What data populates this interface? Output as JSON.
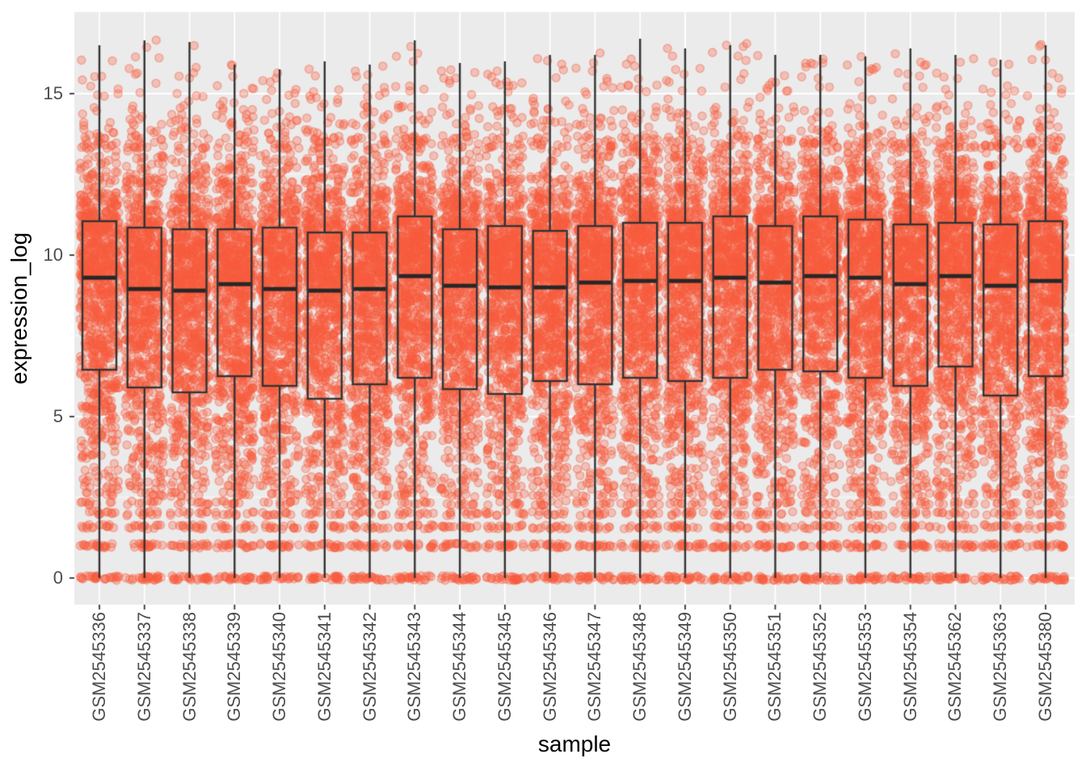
{
  "chart_data": {
    "type": "boxplot-jitter",
    "title": "",
    "xlabel": "sample",
    "ylabel": "expression_log",
    "ylim": [
      -0.82,
      17.5
    ],
    "yticks": [
      0,
      5,
      10,
      15
    ],
    "yticks_minor": [
      2.5,
      7.5,
      12.5
    ],
    "grid": "major-and-minor-white-on-gray",
    "legend": "none",
    "categories": [
      "GSM2545336",
      "GSM2545337",
      "GSM2545338",
      "GSM2545339",
      "GSM2545340",
      "GSM2545341",
      "GSM2545342",
      "GSM2545343",
      "GSM2545344",
      "GSM2545345",
      "GSM2545346",
      "GSM2545347",
      "GSM2545348",
      "GSM2545349",
      "GSM2545350",
      "GSM2545351",
      "GSM2545352",
      "GSM2545353",
      "GSM2545354",
      "GSM2545362",
      "GSM2545363",
      "GSM2545380"
    ],
    "boxes": [
      {
        "sample": "GSM2545336",
        "whisker_low": 0,
        "q1": 6.45,
        "median": 9.3,
        "q3": 11.05,
        "whisker_high": 16.5
      },
      {
        "sample": "GSM2545337",
        "whisker_low": 0,
        "q1": 5.9,
        "median": 8.95,
        "q3": 10.85,
        "whisker_high": 16.65
      },
      {
        "sample": "GSM2545338",
        "whisker_low": 0,
        "q1": 5.75,
        "median": 8.9,
        "q3": 10.8,
        "whisker_high": 16.6
      },
      {
        "sample": "GSM2545339",
        "whisker_low": 0,
        "q1": 6.25,
        "median": 9.1,
        "q3": 10.8,
        "whisker_high": 15.9
      },
      {
        "sample": "GSM2545340",
        "whisker_low": 0,
        "q1": 5.95,
        "median": 8.95,
        "q3": 10.85,
        "whisker_high": 15.75
      },
      {
        "sample": "GSM2545341",
        "whisker_low": 0,
        "q1": 5.55,
        "median": 8.9,
        "q3": 10.7,
        "whisker_high": 16.0
      },
      {
        "sample": "GSM2545342",
        "whisker_low": 0,
        "q1": 6.0,
        "median": 8.95,
        "q3": 10.7,
        "whisker_high": 15.9
      },
      {
        "sample": "GSM2545343",
        "whisker_low": 0,
        "q1": 6.2,
        "median": 9.35,
        "q3": 11.2,
        "whisker_high": 16.65
      },
      {
        "sample": "GSM2545344",
        "whisker_low": 0,
        "q1": 5.85,
        "median": 9.05,
        "q3": 10.8,
        "whisker_high": 15.95
      },
      {
        "sample": "GSM2545345",
        "whisker_low": 0,
        "q1": 5.7,
        "median": 9.0,
        "q3": 10.9,
        "whisker_high": 16.0
      },
      {
        "sample": "GSM2545346",
        "whisker_low": 0,
        "q1": 6.1,
        "median": 9.0,
        "q3": 10.75,
        "whisker_high": 16.2
      },
      {
        "sample": "GSM2545347",
        "whisker_low": 0,
        "q1": 6.0,
        "median": 9.15,
        "q3": 10.9,
        "whisker_high": 16.2
      },
      {
        "sample": "GSM2545348",
        "whisker_low": 0,
        "q1": 6.2,
        "median": 9.2,
        "q3": 11.0,
        "whisker_high": 16.7
      },
      {
        "sample": "GSM2545349",
        "whisker_low": 0,
        "q1": 6.1,
        "median": 9.2,
        "q3": 11.0,
        "whisker_high": 16.4
      },
      {
        "sample": "GSM2545350",
        "whisker_low": 0,
        "q1": 6.2,
        "median": 9.3,
        "q3": 11.2,
        "whisker_high": 16.5
      },
      {
        "sample": "GSM2545351",
        "whisker_low": 0,
        "q1": 6.45,
        "median": 9.15,
        "q3": 10.9,
        "whisker_high": 16.2
      },
      {
        "sample": "GSM2545352",
        "whisker_low": 0,
        "q1": 6.4,
        "median": 9.35,
        "q3": 11.2,
        "whisker_high": 16.2
      },
      {
        "sample": "GSM2545353",
        "whisker_low": 0,
        "q1": 6.2,
        "median": 9.3,
        "q3": 11.1,
        "whisker_high": 16.15
      },
      {
        "sample": "GSM2545354",
        "whisker_low": 0,
        "q1": 5.95,
        "median": 9.1,
        "q3": 10.95,
        "whisker_high": 16.4
      },
      {
        "sample": "GSM2545362",
        "whisker_low": 0,
        "q1": 6.55,
        "median": 9.35,
        "q3": 11.0,
        "whisker_high": 16.2
      },
      {
        "sample": "GSM2545363",
        "whisker_low": 0,
        "q1": 5.65,
        "median": 9.05,
        "q3": 10.95,
        "whisker_high": 16.05
      },
      {
        "sample": "GSM2545380",
        "whisker_low": 0,
        "q1": 6.25,
        "median": 9.2,
        "q3": 11.05,
        "whisker_high": 16.5
      }
    ],
    "jitter": {
      "seed": 4242,
      "n_continuum": 850,
      "sigma_upper": 1.95,
      "sigma_lower": 3.3,
      "continuum_floor": 3.38,
      "continuum_soft_ceiling": 13.7,
      "discrete_rows": [
        {
          "value": 0,
          "n": 26
        },
        {
          "value": 1,
          "n": 20
        },
        {
          "value": 1.585,
          "n": 14
        },
        {
          "value": 2,
          "n": 11
        },
        {
          "value": 2.322,
          "n": 9
        },
        {
          "value": 2.585,
          "n": 8
        },
        {
          "value": 2.807,
          "n": 7
        },
        {
          "value": 3,
          "n": 6
        },
        {
          "value": 3.17,
          "n": 5
        },
        {
          "value": 3.322,
          "n": 4
        }
      ],
      "upper_band_a": {
        "n": 24,
        "from": 13.3,
        "to": 14.6
      },
      "upper_band_b": {
        "n": 10,
        "from": 14.6,
        "to_whisker": true
      }
    },
    "colors": {
      "panel_background": "#EBEBEB",
      "outer_background": "#FFFFFF",
      "grid": "#FFFFFF",
      "point_base": "#F95E3F",
      "point_fill_alpha": 0.3,
      "point_stroke_alpha": 0.42,
      "box_stroke": "#333333",
      "median_stroke": "#262626",
      "tick_mark": "#333333",
      "tick_label": "#4D4D4D",
      "axis_title": "#000000"
    }
  }
}
